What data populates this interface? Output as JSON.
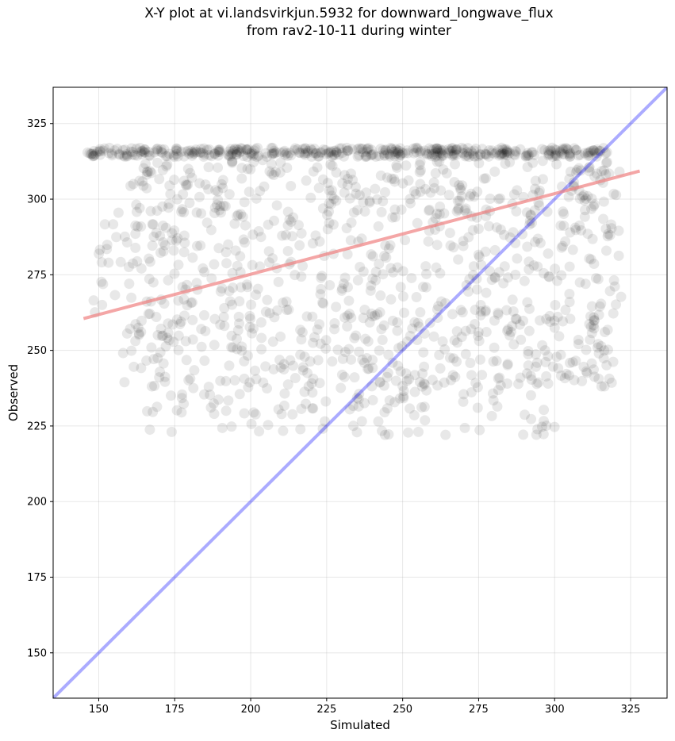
{
  "chart_data": {
    "type": "scatter",
    "title": "X-Y plot at vi.landsvirkjun.5932 for downward_longwave_flux",
    "subtitle": "from rav2-10-11 during winter",
    "xlabel": "Simulated",
    "ylabel": "Observed",
    "xlim": [
      135,
      337
    ],
    "ylim": [
      135,
      337
    ],
    "xticks": [
      150,
      175,
      200,
      225,
      250,
      275,
      300,
      325
    ],
    "yticks": [
      150,
      175,
      200,
      225,
      250,
      275,
      300,
      325
    ],
    "grid": true,
    "point_color": "#000000",
    "one_to_one_line": {
      "x": [
        135,
        337
      ],
      "y": [
        135,
        337
      ],
      "color": "#0000ff"
    },
    "regression_line": {
      "x": [
        145,
        328
      ],
      "y": [
        260.5,
        309.3
      ],
      "color": "#f08080"
    },
    "point_clusters": [
      {
        "x_range": [
          146,
          318
        ],
        "y_range": [
          314,
          317
        ],
        "count": 420
      },
      {
        "x_range": [
          160,
          322
        ],
        "y_range": [
          295,
          313
        ],
        "count": 260
      },
      {
        "x_range": [
          148,
          322
        ],
        "y_range": [
          262,
          296
        ],
        "count": 360
      },
      {
        "x_range": [
          158,
          320
        ],
        "y_range": [
          238,
          262
        ],
        "count": 320
      },
      {
        "x_range": [
          165,
          300
        ],
        "y_range": [
          222,
          240
        ],
        "count": 120
      }
    ]
  }
}
